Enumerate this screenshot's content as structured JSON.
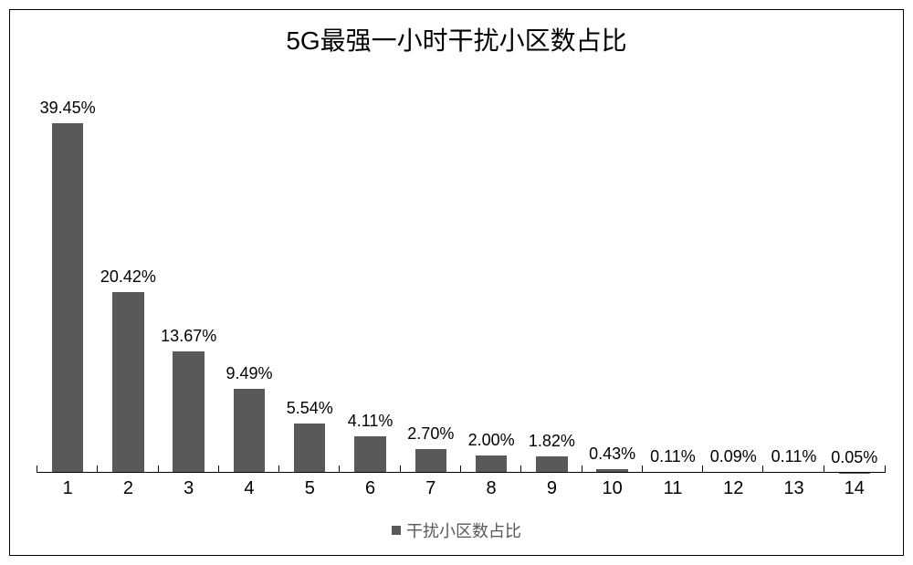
{
  "chart": {
    "type": "bar",
    "title": "5G最强一小时干扰小区数占比",
    "title_fontsize": 28,
    "title_color": "#000000",
    "background_color": "#ffffff",
    "border_color": "#000000",
    "border_width": 1.5,
    "font_family": "Microsoft YaHei, SimSun, Arial, sans-serif",
    "categories": [
      "1",
      "2",
      "3",
      "4",
      "5",
      "6",
      "7",
      "8",
      "9",
      "10",
      "11",
      "12",
      "13",
      "14"
    ],
    "values": [
      39.45,
      20.42,
      13.67,
      9.49,
      5.54,
      4.11,
      2.7,
      2.0,
      1.82,
      0.43,
      0.11,
      0.09,
      0.11,
      0.05
    ],
    "value_labels": [
      "39.45%",
      "20.42%",
      "13.67%",
      "9.49%",
      "5.54%",
      "4.11%",
      "2.70%",
      "2.00%",
      "1.82%",
      "0.43%",
      "0.11%",
      "0.09%",
      "0.11%",
      "0.05%"
    ],
    "bar_color": "#595959",
    "bar_width_ratio": 0.52,
    "data_label_fontsize": 18,
    "data_label_color": "#000000",
    "xtick_fontsize": 20,
    "xtick_color": "#000000",
    "axis_line_color": "#000000",
    "ymax": 45,
    "legend": {
      "label": "干扰小区数占比",
      "swatch_color": "#595959",
      "text_color": "#595959",
      "fontsize": 18,
      "position": "bottom"
    }
  }
}
